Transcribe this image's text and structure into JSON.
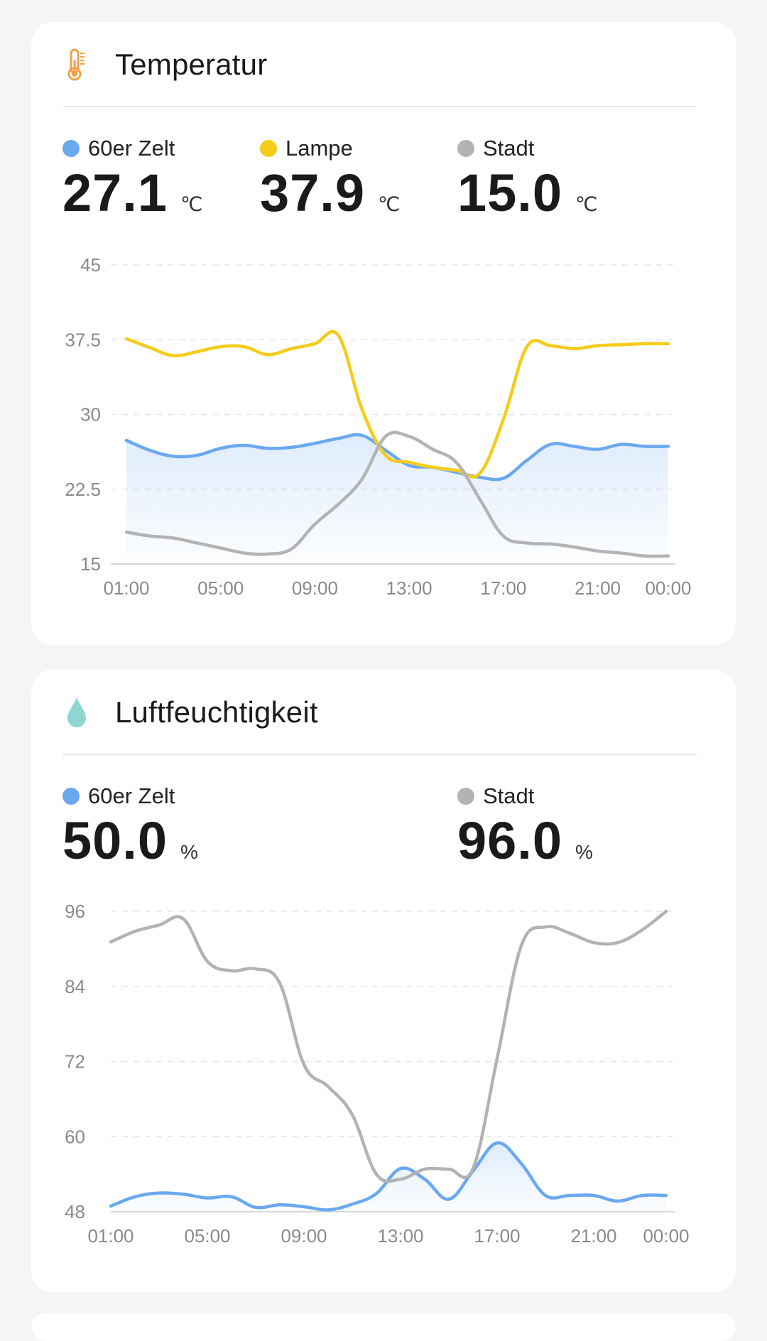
{
  "colors": {
    "blue": "#6aa8f0",
    "yellow": "#f5cc1a",
    "gray": "#b3b3b3",
    "thermometer_orange": "#f0a04b",
    "drop_teal": "#8ed6d2"
  },
  "temperature_card": {
    "title": "Temperatur",
    "icon": "thermometer-icon",
    "metrics": [
      {
        "name": "60er Zelt",
        "value": "27.1",
        "unit": "℃",
        "color": "#6aa8f0"
      },
      {
        "name": "Lampe",
        "value": "37.9",
        "unit": "℃",
        "color": "#f5cc1a"
      },
      {
        "name": "Stadt",
        "value": "15.0",
        "unit": "℃",
        "color": "#b3b3b3"
      }
    ]
  },
  "humidity_card": {
    "title": "Luftfeuchtigkeit",
    "icon": "water-drop-icon",
    "metrics": [
      {
        "name": "60er Zelt",
        "value": "50.0",
        "unit": "%",
        "color": "#6aa8f0"
      },
      {
        "name": "Stadt",
        "value": "96.0",
        "unit": "%",
        "color": "#b3b3b3"
      }
    ]
  },
  "chart_data": [
    {
      "type": "line",
      "title": "Temperatur",
      "x": [
        "01:00",
        "02:00",
        "03:00",
        "04:00",
        "05:00",
        "06:00",
        "07:00",
        "08:00",
        "09:00",
        "10:00",
        "11:00",
        "12:00",
        "13:00",
        "14:00",
        "15:00",
        "16:00",
        "17:00",
        "18:00",
        "19:00",
        "20:00",
        "21:00",
        "22:00",
        "23:00",
        "00:00"
      ],
      "x_tick_labels": [
        "01:00",
        "05:00",
        "09:00",
        "13:00",
        "17:00",
        "21:00",
        "00:00"
      ],
      "y_ticks": [
        "15",
        "22.5",
        "30",
        "37.5",
        "45"
      ],
      "ylim": [
        15,
        45
      ],
      "grid": true,
      "series": [
        {
          "name": "60er Zelt",
          "color": "#6aa8f0",
          "area": true,
          "values": [
            27.4,
            26.4,
            25.8,
            25.9,
            26.6,
            26.9,
            26.6,
            26.7,
            27.1,
            27.6,
            27.9,
            26.4,
            24.9,
            24.7,
            24.2,
            23.7,
            23.6,
            25.4,
            27.0,
            26.8,
            26.5,
            27.0,
            26.8,
            26.8
          ]
        },
        {
          "name": "Lampe",
          "color": "#f5cc1a",
          "area": false,
          "values": [
            37.6,
            36.7,
            35.9,
            36.3,
            36.8,
            36.8,
            36.0,
            36.6,
            37.1,
            37.9,
            30.5,
            25.9,
            25.2,
            24.7,
            24.4,
            24.1,
            29.5,
            36.8,
            36.9,
            36.6,
            36.9,
            37.0,
            37.1,
            37.1
          ]
        },
        {
          "name": "Stadt",
          "color": "#b3b3b3",
          "area": false,
          "values": [
            18.2,
            17.8,
            17.6,
            17.1,
            16.6,
            16.1,
            16.0,
            16.5,
            19.0,
            21.0,
            23.5,
            27.8,
            27.8,
            26.5,
            25.2,
            21.5,
            17.8,
            17.1,
            17.0,
            16.7,
            16.3,
            16.1,
            15.8,
            15.8
          ]
        }
      ]
    },
    {
      "type": "line",
      "title": "Luftfeuchtigkeit",
      "x": [
        "01:00",
        "02:00",
        "03:00",
        "04:00",
        "05:00",
        "06:00",
        "07:00",
        "08:00",
        "09:00",
        "10:00",
        "11:00",
        "12:00",
        "13:00",
        "14:00",
        "15:00",
        "16:00",
        "17:00",
        "18:00",
        "19:00",
        "20:00",
        "21:00",
        "22:00",
        "23:00",
        "00:00"
      ],
      "x_tick_labels": [
        "01:00",
        "05:00",
        "09:00",
        "13:00",
        "17:00",
        "21:00",
        "00:00"
      ],
      "y_ticks": [
        "48",
        "60",
        "72",
        "84",
        "96"
      ],
      "ylim": [
        48,
        96
      ],
      "grid": true,
      "series": [
        {
          "name": "60er Zelt",
          "color": "#6aa8f0",
          "area": true,
          "values": [
            48.9,
            50.4,
            51.0,
            50.8,
            50.2,
            50.4,
            48.7,
            49.1,
            48.8,
            48.3,
            49.2,
            50.9,
            54.9,
            53.2,
            50.0,
            54.5,
            59.0,
            55.7,
            50.6,
            50.6,
            50.6,
            49.7,
            50.6,
            50.6
          ]
        },
        {
          "name": "Stadt",
          "color": "#b3b3b3",
          "area": false,
          "values": [
            91.1,
            92.8,
            93.8,
            94.8,
            88.0,
            86.5,
            86.8,
            84.5,
            71.5,
            68.0,
            63.5,
            54.0,
            53.2,
            54.8,
            54.8,
            54.9,
            72.5,
            90.5,
            93.5,
            92.5,
            91.0,
            91.0,
            93.0,
            96.0
          ]
        }
      ]
    }
  ]
}
